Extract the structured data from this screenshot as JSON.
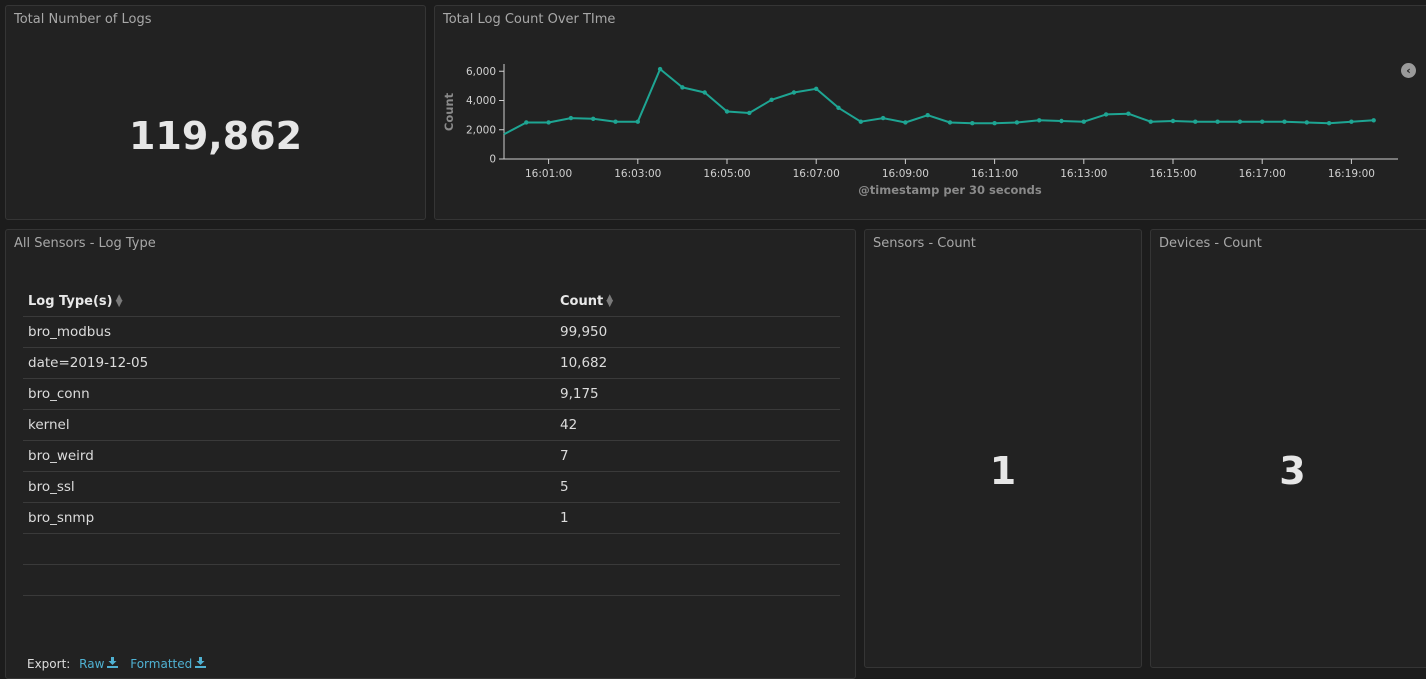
{
  "panels": {
    "total_logs": {
      "title": "Total Number of Logs",
      "value": "119,862"
    },
    "log_count_chart": {
      "title": "Total Log Count Over TIme"
    },
    "log_type_table": {
      "title": "All Sensors - Log Type"
    },
    "sensors_count": {
      "title": "Sensors - Count",
      "value": "1"
    },
    "devices_count": {
      "title": "Devices - Count",
      "value": "3"
    }
  },
  "chart_data": {
    "type": "line",
    "title": "Total Log Count Over TIme",
    "xlabel": "@timestamp per 30 seconds",
    "ylabel": "Count",
    "ylim": [
      0,
      6500
    ],
    "yticks": [
      0,
      2000,
      4000,
      6000
    ],
    "ytick_labels": [
      "0",
      "2,000",
      "4,000",
      "6,000"
    ],
    "xtick_labels": [
      "16:01:00",
      "16:03:00",
      "16:05:00",
      "16:07:00",
      "16:09:00",
      "16:11:00",
      "16:13:00",
      "16:15:00",
      "16:17:00",
      "16:19:00"
    ],
    "grid": false,
    "legend": "none",
    "line_color": "#1ea593",
    "series": [
      {
        "x": [
          "16:00:00",
          "16:00:30",
          "16:01:00",
          "16:01:30",
          "16:02:00",
          "16:02:30",
          "16:03:00",
          "16:03:30",
          "16:04:00",
          "16:04:30",
          "16:05:00",
          "16:05:30",
          "16:06:00",
          "16:06:30",
          "16:07:00",
          "16:07:30",
          "16:08:00",
          "16:08:30",
          "16:09:00",
          "16:09:30",
          "16:10:00",
          "16:10:30",
          "16:11:00",
          "16:11:30",
          "16:12:00",
          "16:12:30",
          "16:13:00",
          "16:13:30",
          "16:14:00",
          "16:14:30",
          "16:15:00",
          "16:15:30",
          "16:16:00",
          "16:16:30",
          "16:17:00",
          "16:17:30",
          "16:18:00",
          "16:18:30",
          "16:19:00",
          "16:19:30"
        ],
        "values": [
          1700,
          2500,
          2500,
          2800,
          2750,
          2550,
          2550,
          6150,
          4900,
          4550,
          3250,
          3150,
          4050,
          4550,
          4800,
          3500,
          2550,
          2800,
          2500,
          3000,
          2500,
          2450,
          2450,
          2500,
          2650,
          2600,
          2550,
          3050,
          3100,
          2550,
          2600,
          2550,
          2550,
          2550,
          2550,
          2550,
          2500,
          2450,
          2550,
          2650
        ]
      }
    ]
  },
  "table": {
    "headers": [
      "Log Type(s)",
      "Count"
    ],
    "rows": [
      [
        "bro_modbus",
        "99,950"
      ],
      [
        "date=2019-12-05",
        "10,682"
      ],
      [
        "bro_conn",
        "9,175"
      ],
      [
        "kernel",
        "42"
      ],
      [
        "bro_weird",
        "7"
      ],
      [
        "bro_ssl",
        "5"
      ],
      [
        "bro_snmp",
        "1"
      ]
    ],
    "empty_rows": 2
  },
  "export": {
    "label": "Export:",
    "raw": "Raw",
    "formatted": "Formatted",
    "icon": "download-icon"
  },
  "colors": {
    "accent_link": "#4fb1d2",
    "line": "#1ea593",
    "background": "#222222"
  }
}
